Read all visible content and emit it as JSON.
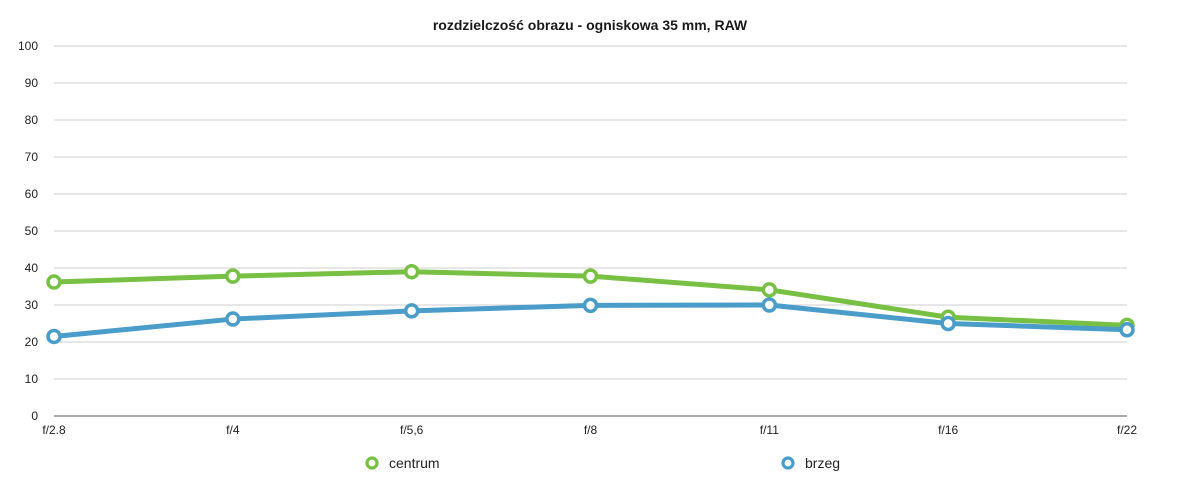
{
  "chart_data": {
    "type": "line",
    "title": "rozdzielczość obrazu - ogniskowa 35 mm, RAW",
    "xlabel": "",
    "ylabel": "",
    "categories": [
      "f/2.8",
      "f/4",
      "f/5,6",
      "f/8",
      "f/11",
      "f/16",
      "f/22"
    ],
    "ylim": [
      0,
      100
    ],
    "yticks": [
      "0",
      "10",
      "20",
      "30",
      "40",
      "50",
      "60",
      "70",
      "80",
      "90",
      "100"
    ],
    "grid": true,
    "legend_position": "bottom",
    "series": [
      {
        "name": "centrum",
        "color": "#77c044",
        "values": [
          36.2,
          37.8,
          39.0,
          37.8,
          34.1,
          26.7,
          24.5
        ]
      },
      {
        "name": "brzeg",
        "color": "#4a9cc9",
        "values": [
          21.5,
          26.2,
          28.4,
          29.9,
          30.0,
          25.0,
          23.3
        ]
      }
    ]
  }
}
